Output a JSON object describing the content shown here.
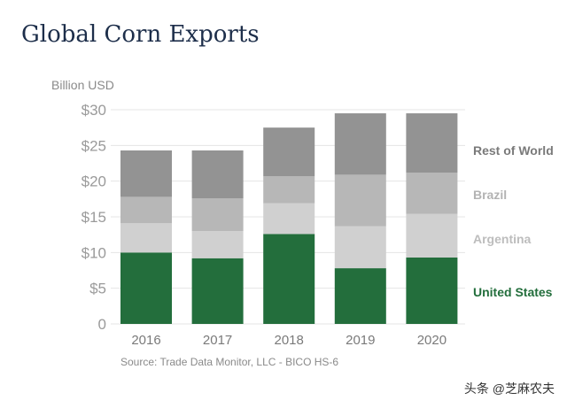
{
  "chart_data": {
    "type": "bar",
    "stacked": true,
    "title": "Global Corn Exports",
    "ylabel": "Billion USD",
    "source": "Source: Trade Data Monitor, LLC - BICO HS-6",
    "categories": [
      "2016",
      "2017",
      "2018",
      "2019",
      "2020"
    ],
    "ylim": [
      0,
      30
    ],
    "yticks": [
      0,
      5,
      10,
      15,
      20,
      25,
      30
    ],
    "ytick_labels": [
      "0",
      "$5",
      "$10",
      "$15",
      "$20",
      "$25",
      "$30"
    ],
    "grid": true,
    "legend_placement": "right, inline labels",
    "series": [
      {
        "name": "United States",
        "values": [
          10.0,
          9.2,
          12.6,
          7.8,
          9.3
        ],
        "color": "#236e3c",
        "label_color": "#236e3c"
      },
      {
        "name": "Argentina",
        "values": [
          4.1,
          3.8,
          4.3,
          5.9,
          6.1
        ],
        "color": "#d0d0d0",
        "label_color": "#bdbdbd"
      },
      {
        "name": "Brazil",
        "values": [
          3.7,
          4.6,
          3.8,
          7.2,
          5.8
        ],
        "color": "#b7b7b7",
        "label_color": "#b3b3b3"
      },
      {
        "name": "Rest of World",
        "values": [
          6.5,
          6.7,
          6.8,
          8.6,
          8.3
        ],
        "color": "#939393",
        "label_color": "#7a7a7a"
      }
    ]
  },
  "watermark": "头条 @芝麻农夫"
}
